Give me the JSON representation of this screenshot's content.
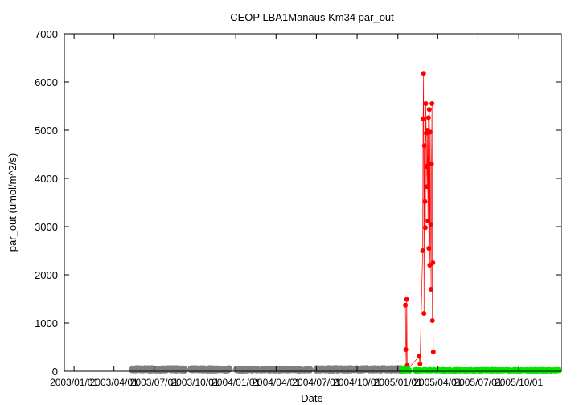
{
  "chart_data": {
    "type": "scatter",
    "title": "CEOP LBA1Manaus Km34  par_out",
    "xlabel": "Date",
    "ylabel": "par_out (umol/m^2/s)",
    "xlim": [
      "2002-12-10",
      "2006-01-05"
    ],
    "ylim": [
      0,
      7000
    ],
    "x_ticks": [
      "2003/01/01",
      "2003/04/01",
      "2003/07/01",
      "2003/10/01",
      "2004/01/01",
      "2004/04/01",
      "2004/07/01",
      "2004/10/01",
      "2005/01/01",
      "2005/04/01",
      "2005/07/01",
      "2005/10/01"
    ],
    "x_tick_labels": [
      "2003/01/01",
      "2003/04/01",
      "2003/07/01",
      "2003/10/01",
      "2004/01/01",
      "2004/04/01",
      "2004/07/01",
      "2004/10/01",
      "2005/01/01",
      "2005/04/01",
      "2005/07/01",
      "2005/10/01"
    ],
    "y_ticks": [
      0,
      1000,
      2000,
      3000,
      4000,
      5000,
      6000,
      7000
    ],
    "y_tick_labels": [
      "0",
      "1000",
      "2000",
      "3000",
      "4000",
      "5000",
      "6000",
      "7000"
    ],
    "grid": false,
    "legend": "none",
    "series": [
      {
        "color": "#808080",
        "style": "points",
        "segments": [
          {
            "start": "2003-05-10",
            "end": "2003-09-10",
            "values": [
              0,
              80
            ]
          },
          {
            "start": "2003-09-20",
            "end": "2003-12-20",
            "values": [
              0,
              80
            ]
          },
          {
            "start": "2004-01-01",
            "end": "2004-05-05",
            "values": [
              0,
              70
            ]
          },
          {
            "start": "2004-05-08",
            "end": "2004-06-18",
            "values": [
              0,
              60
            ]
          },
          {
            "start": "2004-06-28",
            "end": "2005-01-12",
            "values": [
              0,
              80
            ]
          }
        ]
      },
      {
        "color": "#ff0000",
        "style": "linespoints",
        "points": [
          [
            "2005-01-18",
            1370
          ],
          [
            "2005-01-19",
            450
          ],
          [
            "2005-01-20",
            80
          ],
          [
            "2005-01-21",
            1490
          ],
          [
            "2005-01-22",
            120
          ],
          [
            "2005-01-23",
            40
          ],
          [
            "2005-02-18",
            310
          ],
          [
            "2005-02-20",
            150
          ],
          [
            "2005-02-26",
            2500
          ],
          [
            "2005-02-27",
            5230
          ],
          [
            "2005-02-28",
            6180
          ],
          [
            "2005-03-01",
            1200
          ],
          [
            "2005-03-02",
            4680
          ],
          [
            "2005-03-03",
            3520
          ],
          [
            "2005-03-04",
            2980
          ],
          [
            "2005-03-05",
            5550
          ],
          [
            "2005-03-06",
            4940
          ],
          [
            "2005-03-07",
            4250
          ],
          [
            "2005-03-08",
            3830
          ],
          [
            "2005-03-09",
            5000
          ],
          [
            "2005-03-10",
            3120
          ],
          [
            "2005-03-11",
            5260
          ],
          [
            "2005-03-12",
            2550
          ],
          [
            "2005-03-13",
            5430
          ],
          [
            "2005-03-14",
            2200
          ],
          [
            "2005-03-15",
            4960
          ],
          [
            "2005-03-16",
            3050
          ],
          [
            "2005-03-17",
            1700
          ],
          [
            "2005-03-18",
            4300
          ],
          [
            "2005-03-19",
            5550
          ],
          [
            "2005-03-20",
            1050
          ],
          [
            "2005-03-21",
            2250
          ],
          [
            "2005-03-22",
            400
          ]
        ]
      },
      {
        "color": "#00e600",
        "style": "points",
        "segments": [
          {
            "start": "2005-01-10",
            "end": "2005-01-28",
            "values": [
              0,
              60
            ]
          },
          {
            "start": "2005-02-08",
            "end": "2006-01-01",
            "values": [
              0,
              40
            ]
          }
        ]
      }
    ]
  }
}
